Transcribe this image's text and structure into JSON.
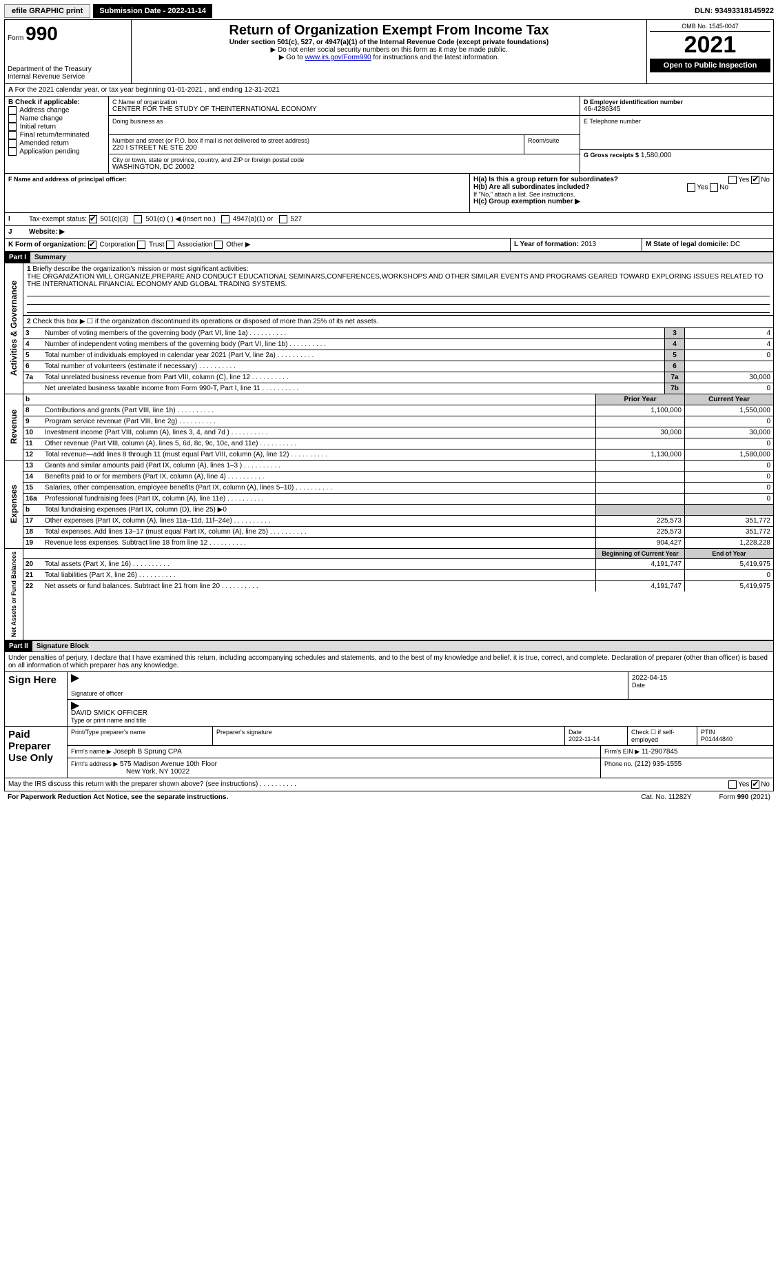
{
  "topbar": {
    "efile": "efile GRAPHIC print",
    "submission_label": "Submission Date - 2022-11-14",
    "dln": "DLN: 93493318145922"
  },
  "header": {
    "form_prefix": "Form",
    "form_number": "990",
    "dept": "Department of the Treasury",
    "irs": "Internal Revenue Service",
    "title": "Return of Organization Exempt From Income Tax",
    "subtitle": "Under section 501(c), 527, or 4947(a)(1) of the Internal Revenue Code (except private foundations)",
    "note1": "▶ Do not enter social security numbers on this form as it may be made public.",
    "note2_pre": "▶ Go to ",
    "note2_link": "www.irs.gov/Form990",
    "note2_post": " for instructions and the latest information.",
    "omb": "OMB No. 1545-0047",
    "year": "2021",
    "open": "Open to Public Inspection"
  },
  "lineA": "For the 2021 calendar year, or tax year beginning 01-01-2021    , and ending 12-31-2021",
  "boxB": {
    "label": "B Check if applicable:",
    "items": [
      "Address change",
      "Name change",
      "Initial return",
      "Final return/terminated",
      "Amended return",
      "Application pending"
    ]
  },
  "boxC": {
    "label": "C Name of organization",
    "name": "CENTER FOR THE STUDY OF THEINTERNATIONAL ECONOMY",
    "dba_label": "Doing business as",
    "street_label": "Number and street (or P.O. box if mail is not delivered to street address)",
    "room_label": "Room/suite",
    "street": "220 I STREET NE STE 200",
    "city_label": "City or town, state or province, country, and ZIP or foreign postal code",
    "city": "WASHINGTON, DC  20002"
  },
  "boxD": {
    "label": "D Employer identification number",
    "value": "46-4286345"
  },
  "boxE": {
    "label": "E Telephone number"
  },
  "boxG": {
    "label": "G Gross receipts $",
    "value": "1,580,000"
  },
  "boxF": {
    "label": "F  Name and address of principal officer:"
  },
  "boxH": {
    "h1a": "H(a)  Is this a group return for subordinates?",
    "h1b": "H(b)  Are all subordinates included?",
    "h1b_note": "If \"No,\" attach a list. See instructions.",
    "h1c": "H(c)  Group exemption number ▶",
    "yes": "Yes",
    "no": "No"
  },
  "boxI": {
    "label": "Tax-exempt status:",
    "opt1": "501(c)(3)",
    "opt2": "501(c) (  ) ◀ (insert no.)",
    "opt3": "4947(a)(1) or",
    "opt4": "527"
  },
  "boxJ": {
    "label": "Website: ▶"
  },
  "boxK": {
    "label": "K Form of organization:",
    "corp": "Corporation",
    "trust": "Trust",
    "assoc": "Association",
    "other": "Other ▶"
  },
  "boxL": {
    "label": "L Year of formation:",
    "value": "2013"
  },
  "boxM": {
    "label": "M State of legal domicile:",
    "value": "DC"
  },
  "part1": {
    "label": "Part I",
    "title": "Summary",
    "line1_label": "Briefly describe the organization's mission or most significant activities:",
    "line1_text": "THE ORGANIZATION WILL ORGANIZE,PREPARE AND CONDUCT EDUCATIONAL SEMINARS,CONFERENCES,WORKSHOPS AND OTHER SIMILAR EVENTS AND PROGRAMS GEARED TOWARD EXPLORING ISSUES RELATED TO THE INTERNATIONAL FINANCIAL ECONOMY AND GLOBAL TRADING SYSTEMS.",
    "line2": "Check this box ▶ ☐  if the organization discontinued its operations or disposed of more than 25% of its net assets."
  },
  "summary_lines": [
    {
      "n": "3",
      "t": "Number of voting members of the governing body (Part VI, line 1a)",
      "box": "3",
      "v": "4"
    },
    {
      "n": "4",
      "t": "Number of independent voting members of the governing body (Part VI, line 1b)",
      "box": "4",
      "v": "4"
    },
    {
      "n": "5",
      "t": "Total number of individuals employed in calendar year 2021 (Part V, line 2a)",
      "box": "5",
      "v": "0"
    },
    {
      "n": "6",
      "t": "Total number of volunteers (estimate if necessary)",
      "box": "6",
      "v": ""
    },
    {
      "n": "7a",
      "t": "Total unrelated business revenue from Part VIII, column (C), line 12",
      "box": "7a",
      "v": "30,000"
    },
    {
      "n": "",
      "t": "Net unrelated business taxable income from Form 990-T, Part I, line 11",
      "box": "7b",
      "v": "0"
    }
  ],
  "prior_header": "Prior Year",
  "current_header": "Current Year",
  "revenue_lines": [
    {
      "n": "8",
      "t": "Contributions and grants (Part VIII, line 1h)",
      "p": "1,100,000",
      "c": "1,550,000"
    },
    {
      "n": "9",
      "t": "Program service revenue (Part VIII, line 2g)",
      "p": "",
      "c": "0"
    },
    {
      "n": "10",
      "t": "Investment income (Part VIII, column (A), lines 3, 4, and 7d )",
      "p": "30,000",
      "c": "30,000"
    },
    {
      "n": "11",
      "t": "Other revenue (Part VIII, column (A), lines 5, 6d, 8c, 9c, 10c, and 11e)",
      "p": "",
      "c": "0"
    },
    {
      "n": "12",
      "t": "Total revenue—add lines 8 through 11 (must equal Part VIII, column (A), line 12)",
      "p": "1,130,000",
      "c": "1,580,000"
    }
  ],
  "expense_lines": [
    {
      "n": "13",
      "t": "Grants and similar amounts paid (Part IX, column (A), lines 1–3 )",
      "p": "",
      "c": "0"
    },
    {
      "n": "14",
      "t": "Benefits paid to or for members (Part IX, column (A), line 4)",
      "p": "",
      "c": "0"
    },
    {
      "n": "15",
      "t": "Salaries, other compensation, employee benefits (Part IX, column (A), lines 5–10)",
      "p": "",
      "c": "0"
    },
    {
      "n": "16a",
      "t": "Professional fundraising fees (Part IX, column (A), line 11e)",
      "p": "",
      "c": "0"
    },
    {
      "n": "b",
      "t": "Total fundraising expenses (Part IX, column (D), line 25) ▶0",
      "p": null,
      "c": null
    },
    {
      "n": "17",
      "t": "Other expenses (Part IX, column (A), lines 11a–11d, 11f–24e)",
      "p": "225,573",
      "c": "351,772"
    },
    {
      "n": "18",
      "t": "Total expenses. Add lines 13–17 (must equal Part IX, column (A), line 25)",
      "p": "225,573",
      "c": "351,772"
    },
    {
      "n": "19",
      "t": "Revenue less expenses. Subtract line 18 from line 12",
      "p": "904,427",
      "c": "1,228,228"
    }
  ],
  "begin_header": "Beginning of Current Year",
  "end_header": "End of Year",
  "net_lines": [
    {
      "n": "20",
      "t": "Total assets (Part X, line 16)",
      "p": "4,191,747",
      "c": "5,419,975"
    },
    {
      "n": "21",
      "t": "Total liabilities (Part X, line 26)",
      "p": "",
      "c": "0"
    },
    {
      "n": "22",
      "t": "Net assets or fund balances. Subtract line 21 from line 20",
      "p": "4,191,747",
      "c": "5,419,975"
    }
  ],
  "vlabels": {
    "gov": "Activities & Governance",
    "rev": "Revenue",
    "exp": "Expenses",
    "net": "Net Assets or Fund Balances"
  },
  "part2": {
    "label": "Part II",
    "title": "Signature Block",
    "declaration": "Under penalties of perjury, I declare that I have examined this return, including accompanying schedules and statements, and to the best of my knowledge and belief, it is true, correct, and complete. Declaration of preparer (other than officer) is based on all information of which preparer has any knowledge."
  },
  "sign": {
    "here": "Sign Here",
    "sig_officer": "Signature of officer",
    "date": "Date",
    "date_val": "2022-04-15",
    "name": "DAVID SMICK  OFFICER",
    "name_label": "Type or print name and title"
  },
  "paid": {
    "label": "Paid Preparer Use Only",
    "print_name": "Print/Type preparer's name",
    "prep_sig": "Preparer's signature",
    "date": "Date",
    "date_val": "2022-11-14",
    "check_label": "Check ☐ if self-employed",
    "ptin_label": "PTIN",
    "ptin": "P01444840",
    "firm_name_label": "Firm's name    ▶",
    "firm_name": "Joseph B Sprung CPA",
    "firm_ein_label": "Firm's EIN ▶",
    "firm_ein": "11-2907845",
    "firm_addr_label": "Firm's address ▶",
    "firm_addr1": "575 Madison Avenue 10th Floor",
    "firm_addr2": "New York, NY  10022",
    "phone_label": "Phone no.",
    "phone": "(212) 935-1555"
  },
  "footer": {
    "may_irs": "May the IRS discuss this return with the preparer shown above? (see instructions)",
    "yes": "Yes",
    "no": "No",
    "pra": "For Paperwork Reduction Act Notice, see the separate instructions.",
    "cat": "Cat. No. 11282Y",
    "form": "Form 990 (2021)"
  }
}
